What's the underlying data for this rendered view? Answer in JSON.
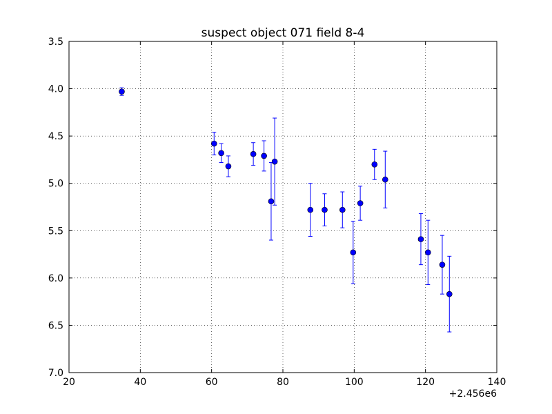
{
  "chart_data": {
    "type": "scatter",
    "title": "suspect object 071 field 8-4",
    "xlabel": "",
    "ylabel": "",
    "x_offset_label": "+2.456e6",
    "xlim": [
      20,
      140
    ],
    "ylim": [
      3.5,
      7.0
    ],
    "y_inverted": true,
    "grid": true,
    "x_ticks": [
      "20",
      "40",
      "60",
      "80",
      "100",
      "120",
      "140"
    ],
    "y_ticks": [
      "3.5",
      "4.0",
      "4.5",
      "5.0",
      "5.5",
      "6.0",
      "6.5",
      "7.0"
    ],
    "marker_color": "#0000ff",
    "series": [
      {
        "points": [
          {
            "x": 34.8,
            "y": 4.03,
            "err": 0.04
          },
          {
            "x": 60.7,
            "y": 4.58,
            "err": 0.12
          },
          {
            "x": 62.7,
            "y": 4.68,
            "err": 0.1
          },
          {
            "x": 64.7,
            "y": 4.82,
            "err": 0.11
          },
          {
            "x": 71.7,
            "y": 4.69,
            "err": 0.12
          },
          {
            "x": 74.7,
            "y": 4.71,
            "err": 0.16
          },
          {
            "x": 76.7,
            "y": 5.19,
            "err": 0.41
          },
          {
            "x": 77.7,
            "y": 4.77,
            "err": 0.46
          },
          {
            "x": 87.7,
            "y": 5.28,
            "err": 0.28
          },
          {
            "x": 91.7,
            "y": 5.28,
            "err": 0.17
          },
          {
            "x": 96.7,
            "y": 5.28,
            "err": 0.19
          },
          {
            "x": 99.7,
            "y": 5.73,
            "err": 0.33
          },
          {
            "x": 101.7,
            "y": 5.21,
            "err": 0.18
          },
          {
            "x": 105.7,
            "y": 4.8,
            "err": 0.16
          },
          {
            "x": 108.7,
            "y": 4.96,
            "err": 0.3
          },
          {
            "x": 118.7,
            "y": 5.59,
            "err": 0.27
          },
          {
            "x": 120.7,
            "y": 5.73,
            "err": 0.34
          },
          {
            "x": 124.7,
            "y": 5.86,
            "err": 0.31
          },
          {
            "x": 126.7,
            "y": 6.17,
            "err": 0.4
          }
        ]
      }
    ]
  }
}
